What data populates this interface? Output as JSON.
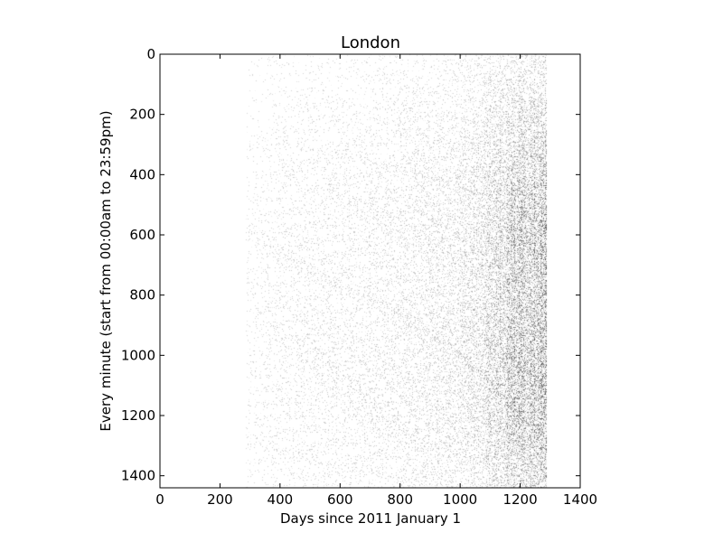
{
  "chart_data": {
    "type": "heatmap",
    "title": "London",
    "xlabel": "Days since 2011 January 1",
    "ylabel": "Every minute (start from 00:00am to 23:59pm)",
    "xlim": [
      0,
      1400
    ],
    "ylim": [
      0,
      1440
    ],
    "y_inverted": true,
    "grid": false,
    "colormap": "gray_r",
    "x_ticks": [
      0,
      200,
      400,
      600,
      800,
      1000,
      1200,
      1400
    ],
    "y_ticks": [
      0,
      200,
      400,
      600,
      800,
      1000,
      1200,
      1400
    ],
    "x_tick_labels": [
      "0",
      "200",
      "400",
      "600",
      "800",
      "1000",
      "1200",
      "1400"
    ],
    "y_tick_labels": [
      "0",
      "200",
      "400",
      "600",
      "800",
      "1000",
      "1200",
      "1400"
    ],
    "data_extent": {
      "day_start": 285,
      "day_end": 1290,
      "minute_start": 0,
      "minute_end": 1440
    },
    "density_profile": {
      "days": [
        285,
        400,
        600,
        800,
        1000,
        1100,
        1200,
        1290
      ],
      "relative_density": [
        0.05,
        0.09,
        0.12,
        0.16,
        0.25,
        0.45,
        0.75,
        0.85
      ]
    },
    "time_of_day_profile": {
      "minutes": [
        0,
        200,
        400,
        600,
        800,
        1000,
        1200,
        1440
      ],
      "relative_density": [
        0.25,
        0.45,
        0.7,
        0.85,
        0.8,
        0.9,
        0.85,
        0.55
      ]
    }
  }
}
